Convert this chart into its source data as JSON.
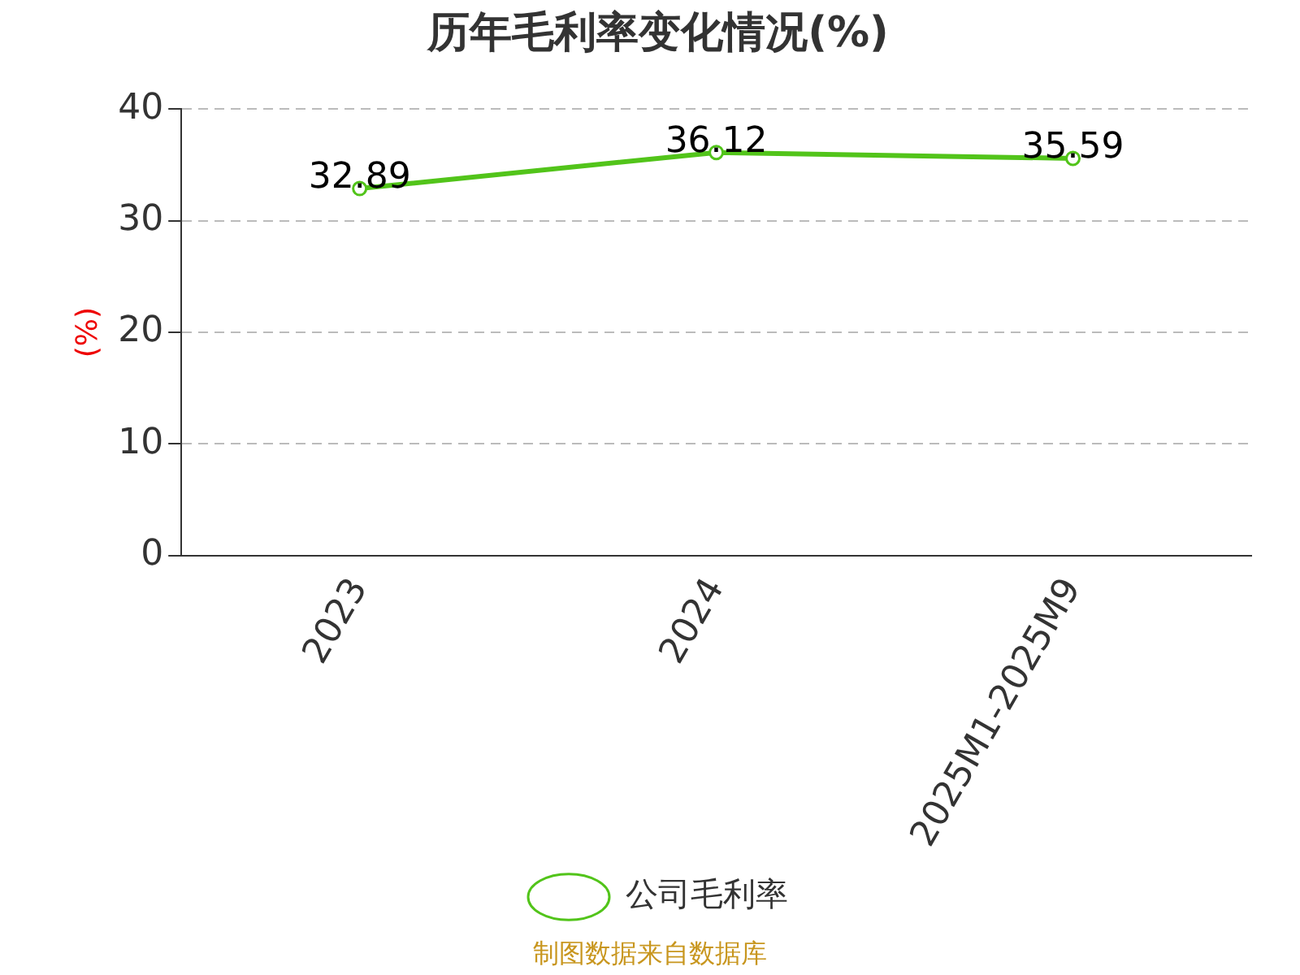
{
  "chart_data": {
    "type": "line",
    "title": "历年毛利率变化情况(%)",
    "ylabel": "(%)",
    "categories": [
      "2023",
      "2024",
      "2025M1-2025M9"
    ],
    "series": [
      {
        "name": "公司毛利率",
        "color": "#52c41a",
        "values": [
          32.89,
          36.12,
          35.59
        ]
      }
    ],
    "ylim": [
      0,
      40
    ],
    "yticks": [
      0,
      10,
      20,
      30,
      40
    ],
    "grid": "y",
    "legend": "bottom",
    "marker": "circle",
    "data_labels": true,
    "annotations": [
      "制图数据来自数据库"
    ]
  }
}
